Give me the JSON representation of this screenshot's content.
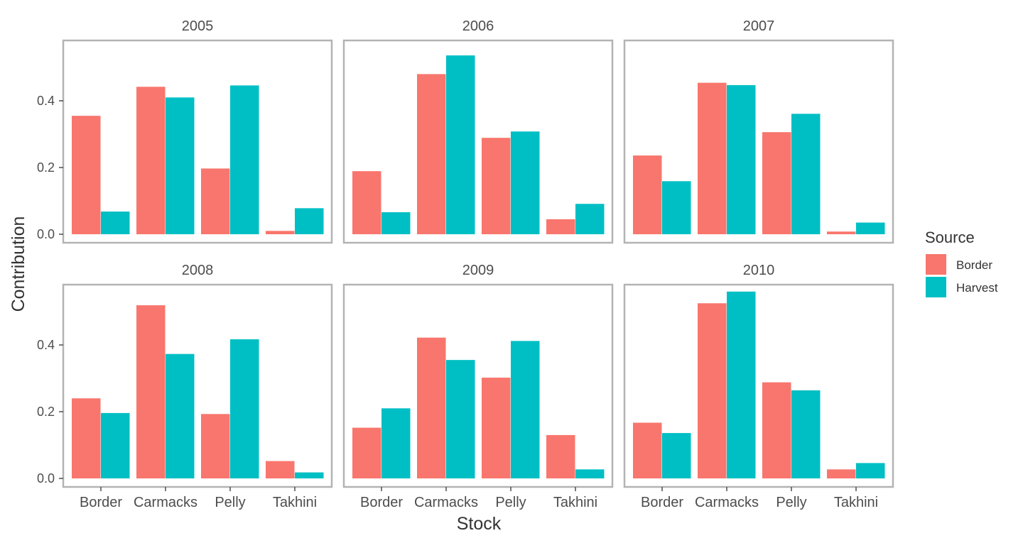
{
  "chart_data": {
    "type": "bar",
    "facet_by": "year",
    "xlabel": "Stock",
    "ylabel": "Contribution",
    "ylim": [
      0,
      0.55
    ],
    "y_ticks": [
      "0.0",
      "0.2",
      "0.4"
    ],
    "categories": [
      "Border",
      "Carmacks",
      "Pelly",
      "Takhini"
    ],
    "legend": {
      "title": "Source",
      "position": "right",
      "entries": [
        {
          "name": "Border",
          "color": "#F8766D"
        },
        {
          "name": "Harvest",
          "color": "#00BFC4"
        }
      ]
    },
    "grid": false,
    "panels": [
      {
        "title": "2005",
        "series": [
          {
            "name": "Border",
            "values": [
              0.355,
              0.442,
              0.197,
              0.01
            ]
          },
          {
            "name": "Harvest",
            "values": [
              0.068,
              0.41,
              0.446,
              0.078
            ]
          }
        ]
      },
      {
        "title": "2006",
        "series": [
          {
            "name": "Border",
            "values": [
              0.189,
              0.48,
              0.289,
              0.045
            ]
          },
          {
            "name": "Harvest",
            "values": [
              0.066,
              0.536,
              0.308,
              0.091
            ]
          }
        ]
      },
      {
        "title": "2007",
        "series": [
          {
            "name": "Border",
            "values": [
              0.236,
              0.454,
              0.306,
              0.008
            ]
          },
          {
            "name": "Harvest",
            "values": [
              0.159,
              0.447,
              0.361,
              0.035
            ]
          }
        ]
      },
      {
        "title": "2008",
        "series": [
          {
            "name": "Border",
            "values": [
              0.24,
              0.519,
              0.193,
              0.052
            ]
          },
          {
            "name": "Harvest",
            "values": [
              0.196,
              0.373,
              0.417,
              0.018
            ]
          }
        ]
      },
      {
        "title": "2009",
        "series": [
          {
            "name": "Border",
            "values": [
              0.152,
              0.422,
              0.302,
              0.13
            ]
          },
          {
            "name": "Harvest",
            "values": [
              0.21,
              0.355,
              0.412,
              0.027
            ]
          }
        ]
      },
      {
        "title": "2010",
        "series": [
          {
            "name": "Border",
            "values": [
              0.167,
              0.525,
              0.288,
              0.027
            ]
          },
          {
            "name": "Harvest",
            "values": [
              0.136,
              0.56,
              0.264,
              0.046
            ]
          }
        ]
      }
    ]
  }
}
